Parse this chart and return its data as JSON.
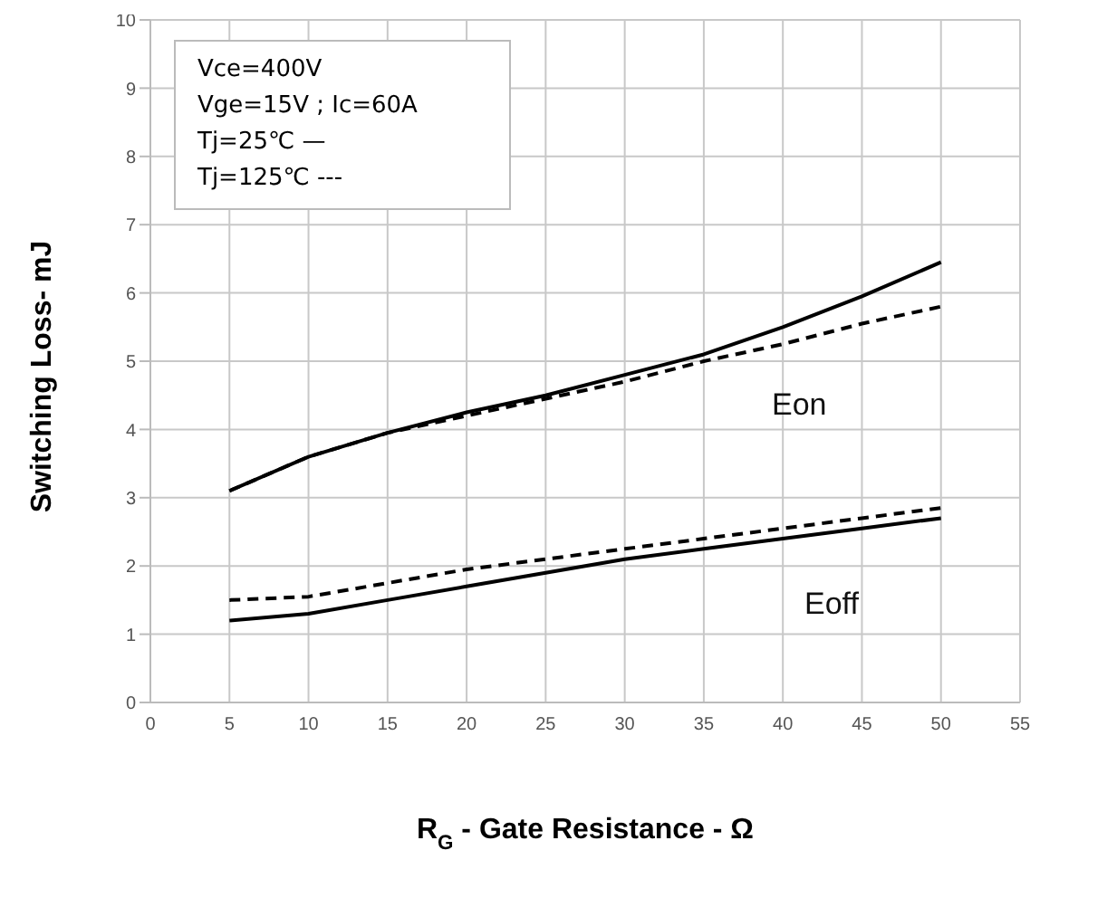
{
  "chart_data": {
    "type": "line",
    "xlabel": "R$_{G}$ - Gate Resistance - Ω",
    "ylabel": "Switching Loss- mJ",
    "x": [
      5,
      10,
      15,
      20,
      25,
      30,
      35,
      40,
      45,
      50
    ],
    "series": [
      {
        "color": "#000000",
        "line_style": "solid",
        "values": [
          3.1,
          3.6,
          3.95,
          4.25,
          4.5,
          4.8,
          5.1,
          5.5,
          5.95,
          6.45
        ]
      },
      {
        "color": "#000000",
        "line_style": "dashed",
        "values": [
          3.1,
          3.6,
          3.95,
          4.2,
          4.45,
          4.7,
          5.0,
          5.25,
          5.55,
          5.8
        ]
      },
      {
        "color": "#000000",
        "line_style": "solid",
        "values": [
          1.2,
          1.3,
          1.5,
          1.7,
          1.9,
          2.1,
          2.25,
          2.4,
          2.55,
          2.7
        ]
      },
      {
        "color": "#000000",
        "line_style": "dashed",
        "values": [
          1.5,
          1.55,
          1.75,
          1.95,
          2.1,
          2.25,
          2.4,
          2.55,
          2.7,
          2.85
        ]
      }
    ],
    "annotations": [
      "Vce=400V",
      "Vge=15V ; Ic=60A",
      "Tj=25℃ —",
      "Tj=125℃ ---",
      "Eon",
      "Eoff"
    ],
    "xlim": [
      0,
      55
    ],
    "xticks": [
      0,
      5,
      10,
      15,
      20,
      25,
      30,
      35,
      40,
      45,
      50,
      55
    ],
    "ylim": [
      0,
      10
    ],
    "yticks": [
      0,
      1,
      2,
      3,
      4,
      5,
      6,
      7,
      8,
      9,
      10
    ],
    "grid": true,
    "legend": false,
    "marker": "none"
  }
}
